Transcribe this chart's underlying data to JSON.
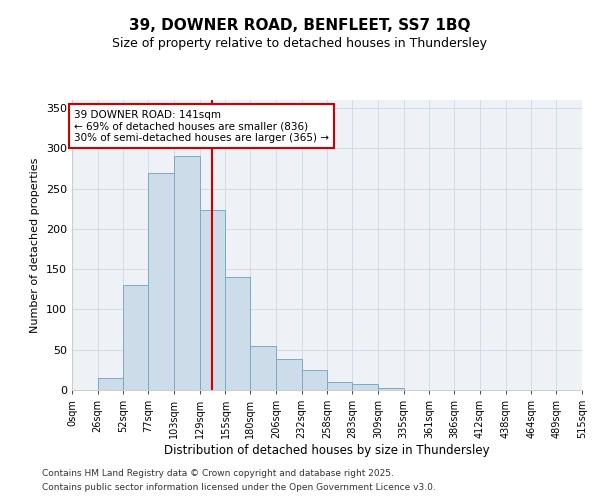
{
  "title1": "39, DOWNER ROAD, BENFLEET, SS7 1BQ",
  "title2": "Size of property relative to detached houses in Thundersley",
  "xlabel": "Distribution of detached houses by size in Thundersley",
  "ylabel": "Number of detached properties",
  "bin_edges": [
    0,
    26,
    52,
    77,
    103,
    129,
    155,
    180,
    206,
    232,
    258,
    283,
    309,
    335,
    361,
    386,
    412,
    438,
    464,
    489,
    515
  ],
  "bar_heights": [
    0,
    15,
    130,
    270,
    290,
    223,
    140,
    55,
    38,
    25,
    10,
    8,
    3,
    0,
    0,
    0,
    0,
    0,
    0,
    0
  ],
  "bar_color": "#ccdce8",
  "bar_edgecolor": "#7aaac8",
  "vline_x": 141,
  "vline_color": "#cc0000",
  "annotation_text": "39 DOWNER ROAD: 141sqm\n← 69% of detached houses are smaller (836)\n30% of semi-detached houses are larger (365) →",
  "annotation_box_color": "#cc0000",
  "ylim": [
    0,
    360
  ],
  "yticks": [
    0,
    50,
    100,
    150,
    200,
    250,
    300,
    350
  ],
  "grid_color": "#d0dde8",
  "background_color": "#eef2f7",
  "footer1": "Contains HM Land Registry data © Crown copyright and database right 2025.",
  "footer2": "Contains public sector information licensed under the Open Government Licence v3.0.",
  "tick_labels": [
    "0sqm",
    "26sqm",
    "52sqm",
    "77sqm",
    "103sqm",
    "129sqm",
    "155sqm",
    "180sqm",
    "206sqm",
    "232sqm",
    "258sqm",
    "283sqm",
    "309sqm",
    "335sqm",
    "361sqm",
    "386sqm",
    "412sqm",
    "438sqm",
    "464sqm",
    "489sqm",
    "515sqm"
  ]
}
